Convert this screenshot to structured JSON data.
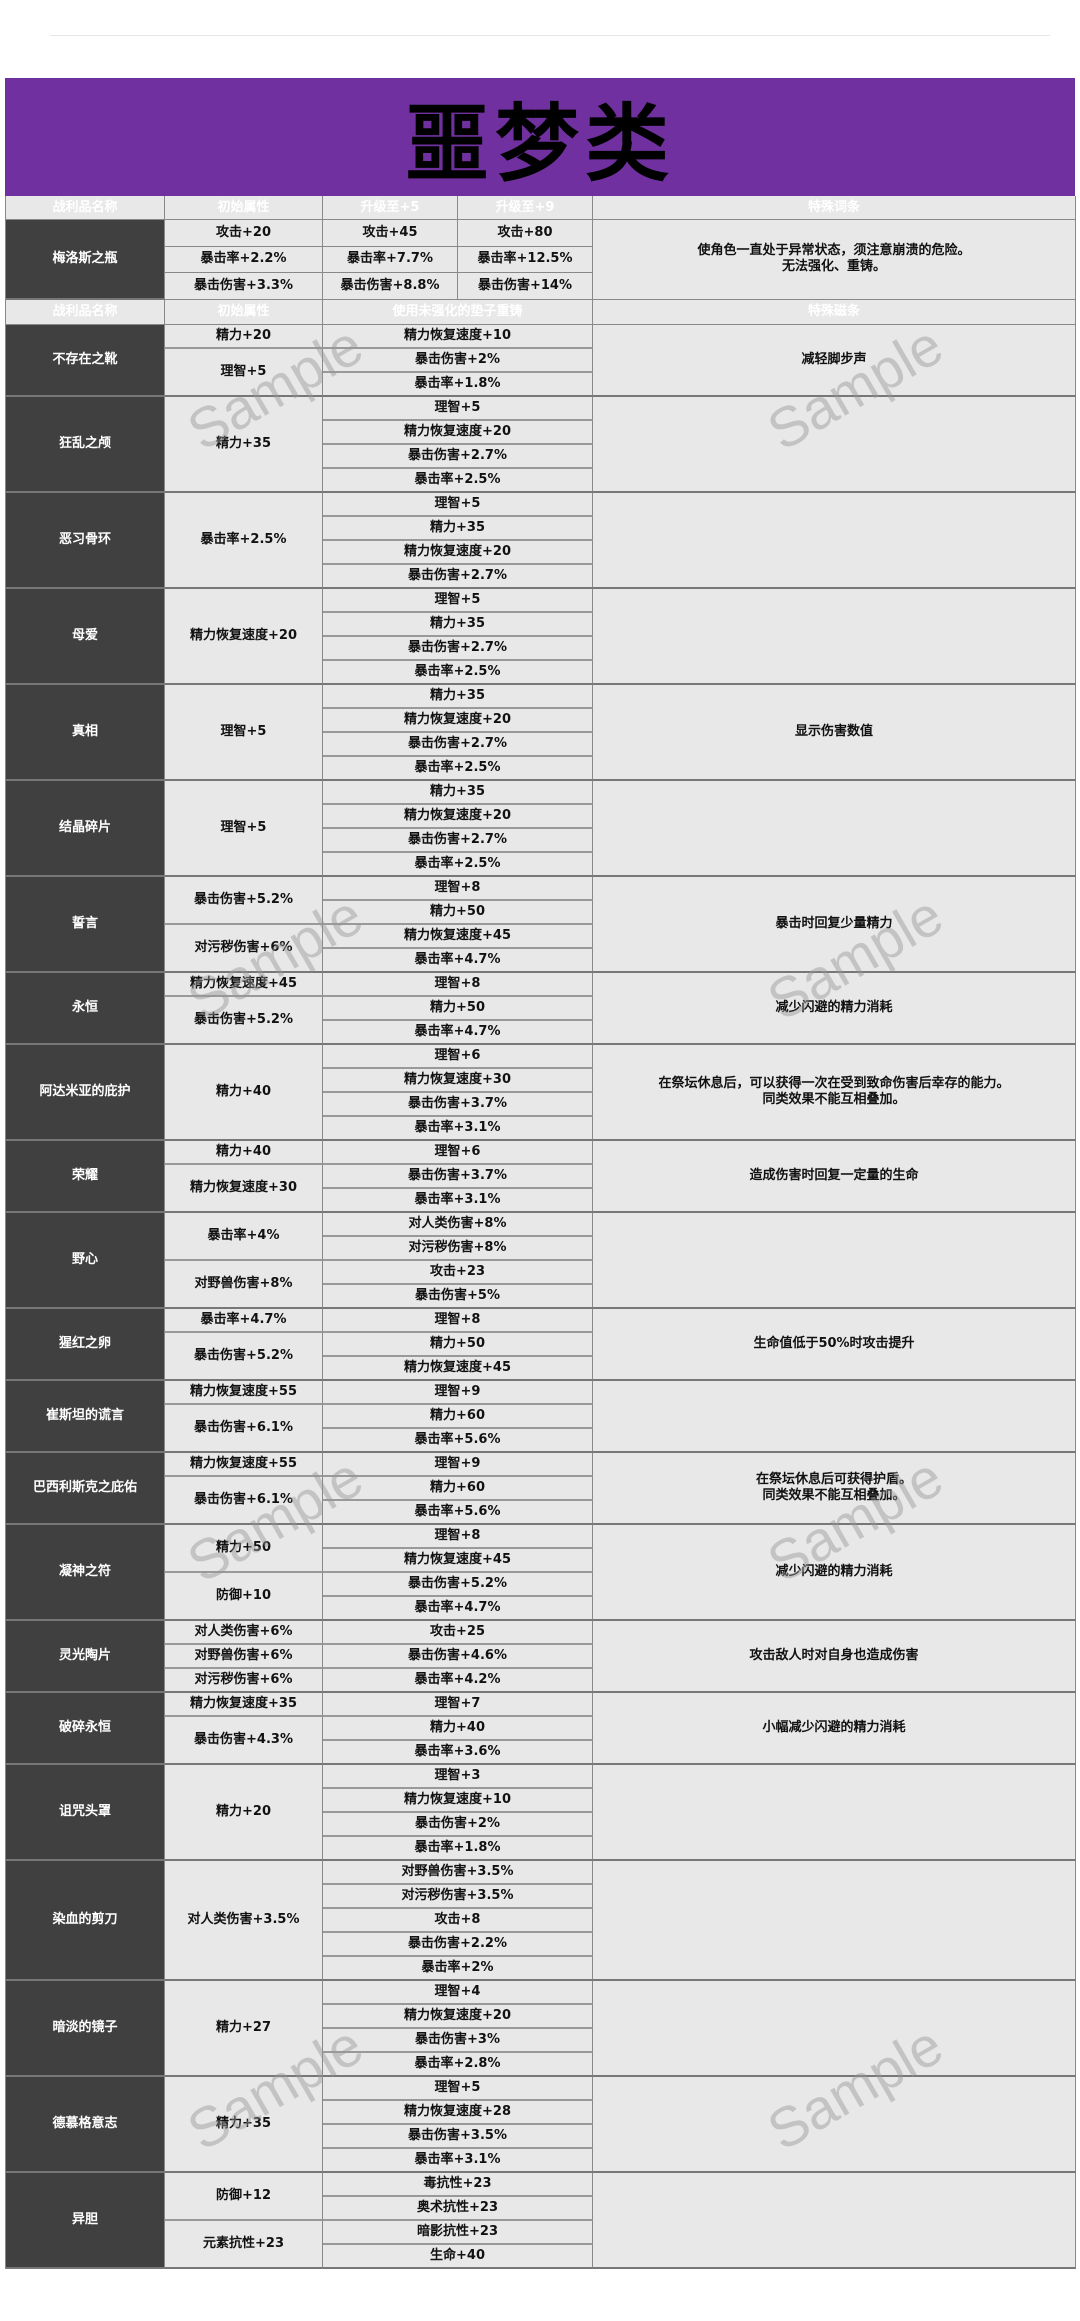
{
  "title": "噩梦类",
  "watermark": "Sample",
  "colors": {
    "banner": "#7030a0",
    "header_purple": "#8064a2",
    "header_dark": "#404040",
    "cell": "#e8e8e8"
  },
  "header1": [
    "战利品名称",
    "初始属性",
    "升级至+5",
    "升级至+9",
    "特殊词条"
  ],
  "mellos": {
    "name": "梅洛斯之瓶",
    "initial": [
      "攻击+20",
      "暴击率+2.2%",
      "暴击伤害+3.3%"
    ],
    "plus5": [
      "攻击+45",
      "暴击率+7.7%",
      "暴击伤害+8.8%"
    ],
    "plus9": [
      "攻击+80",
      "暴击率+12.5%",
      "暴击伤害+14%"
    ],
    "effect": "使角色一直处于异常状态，须注意崩溃的危险。\n无法强化、重铸。"
  },
  "header2": [
    "战利品名称",
    "初始属性",
    "使用未强化的垫子重铸",
    "特殊磁条"
  ],
  "items": [
    {
      "name": "不存在之靴",
      "initial": [
        [
          "精力+20",
          1
        ],
        [
          "理智+5",
          2
        ]
      ],
      "reforge": [
        "精力恢复速度+10",
        "暴击伤害+2%",
        "暴击率+1.8%"
      ],
      "effect": "减轻脚步声"
    },
    {
      "name": "狂乱之颅",
      "initial": [
        [
          "精力+35",
          4
        ]
      ],
      "reforge": [
        "理智+5",
        "精力恢复速度+20",
        "暴击伤害+2.7%",
        "暴击率+2.5%"
      ],
      "effect": ""
    },
    {
      "name": "恶习骨环",
      "initial": [
        [
          "暴击率+2.5%",
          4
        ]
      ],
      "reforge": [
        "理智+5",
        "精力+35",
        "精力恢复速度+20",
        "暴击伤害+2.7%"
      ],
      "effect": ""
    },
    {
      "name": "母爱",
      "initial": [
        [
          "精力恢复速度+20",
          4
        ]
      ],
      "reforge": [
        "理智+5",
        "精力+35",
        "暴击伤害+2.7%",
        "暴击率+2.5%"
      ],
      "effect": ""
    },
    {
      "name": "真相",
      "initial": [
        [
          "理智+5",
          4
        ]
      ],
      "reforge": [
        "精力+35",
        "精力恢复速度+20",
        "暴击伤害+2.7%",
        "暴击率+2.5%"
      ],
      "effect": "显示伤害数值"
    },
    {
      "name": "结晶碎片",
      "initial": [
        [
          "理智+5",
          4
        ]
      ],
      "reforge": [
        "精力+35",
        "精力恢复速度+20",
        "暴击伤害+2.7%",
        "暴击率+2.5%"
      ],
      "effect": ""
    },
    {
      "name": "誓言",
      "initial": [
        [
          "暴击伤害+5.2%",
          2
        ],
        [
          "对污秽伤害+6%",
          2
        ]
      ],
      "reforge": [
        "理智+8",
        "精力+50",
        "精力恢复速度+45",
        "暴击率+4.7%"
      ],
      "effect": "暴击时回复少量精力"
    },
    {
      "name": "永恒",
      "initial": [
        [
          "精力恢复速度+45",
          1
        ],
        [
          "暴击伤害+5.2%",
          2
        ]
      ],
      "reforge": [
        "理智+8",
        "精力+50",
        "暴击率+4.7%"
      ],
      "effect": "减少闪避的精力消耗"
    },
    {
      "name": "阿达米亚的庇护",
      "initial": [
        [
          "精力+40",
          4
        ]
      ],
      "reforge": [
        "理智+6",
        "精力恢复速度+30",
        "暴击伤害+3.7%",
        "暴击率+3.1%"
      ],
      "effect": "在祭坛休息后，可以获得一次在受到致命伤害后幸存的能力。\n同类效果不能互相叠加。"
    },
    {
      "name": "荣耀",
      "initial": [
        [
          "精力+40",
          1
        ],
        [
          "精力恢复速度+30",
          2
        ]
      ],
      "reforge": [
        "理智+6",
        "暴击伤害+3.7%",
        "暴击率+3.1%"
      ],
      "effect": "造成伤害时回复一定量的生命"
    },
    {
      "name": "野心",
      "initial": [
        [
          "暴击率+4%",
          2
        ],
        [
          "对野兽伤害+8%",
          2
        ]
      ],
      "reforge": [
        "对人类伤害+8%",
        "对污秽伤害+8%",
        "攻击+23",
        "暴击伤害+5%"
      ],
      "effect": ""
    },
    {
      "name": "猩红之卵",
      "initial": [
        [
          "暴击率+4.7%",
          1
        ],
        [
          "暴击伤害+5.2%",
          2
        ]
      ],
      "reforge": [
        "理智+8",
        "精力+50",
        "精力恢复速度+45"
      ],
      "effect": "生命值低于50%时攻击提升"
    },
    {
      "name": "崔斯坦的谎言",
      "initial": [
        [
          "精力恢复速度+55",
          1
        ],
        [
          "暴击伤害+6.1%",
          2
        ]
      ],
      "reforge": [
        "理智+9",
        "精力+60",
        "暴击率+5.6%"
      ],
      "effect": ""
    },
    {
      "name": "巴西利斯克之庇佑",
      "initial": [
        [
          "精力恢复速度+55",
          1
        ],
        [
          "暴击伤害+6.1%",
          2
        ]
      ],
      "reforge": [
        "理智+9",
        "精力+60",
        "暴击率+5.6%"
      ],
      "effect": "在祭坛休息后可获得护盾。\n同类效果不能互相叠加。"
    },
    {
      "name": "凝神之符",
      "initial": [
        [
          "精力+50",
          2
        ],
        [
          "防御+10",
          2
        ]
      ],
      "reforge": [
        "理智+8",
        "精力恢复速度+45",
        "暴击伤害+5.2%",
        "暴击率+4.7%"
      ],
      "effect": "减少闪避的精力消耗"
    },
    {
      "name": "灵光陶片",
      "initial": [
        [
          "对人类伤害+6%",
          1
        ],
        [
          "对野兽伤害+6%",
          1
        ],
        [
          "对污秽伤害+6%",
          1
        ]
      ],
      "reforge": [
        "攻击+25",
        "暴击伤害+4.6%",
        "暴击率+4.2%"
      ],
      "effect": "攻击敌人时对自身也造成伤害"
    },
    {
      "name": "破碎永恒",
      "initial": [
        [
          "精力恢复速度+35",
          1
        ],
        [
          "暴击伤害+4.3%",
          2
        ]
      ],
      "reforge": [
        "理智+7",
        "精力+40",
        "暴击率+3.6%"
      ],
      "effect": "小幅减少闪避的精力消耗"
    },
    {
      "name": "诅咒头罩",
      "initial": [
        [
          "精力+20",
          4
        ]
      ],
      "reforge": [
        "理智+3",
        "精力恢复速度+10",
        "暴击伤害+2%",
        "暴击率+1.8%"
      ],
      "effect": ""
    },
    {
      "name": "染血的剪刀",
      "initial": [
        [
          "对人类伤害+3.5%",
          5
        ]
      ],
      "reforge": [
        "对野兽伤害+3.5%",
        "对污秽伤害+3.5%",
        "攻击+8",
        "暴击伤害+2.2%",
        "暴击率+2%"
      ],
      "effect": ""
    },
    {
      "name": "暗淡的镜子",
      "initial": [
        [
          "精力+27",
          4
        ]
      ],
      "reforge": [
        "理智+4",
        "精力恢复速度+20",
        "暴击伤害+3%",
        "暴击率+2.8%"
      ],
      "effect": ""
    },
    {
      "name": "德慕格意志",
      "initial": [
        [
          "精力+35",
          4
        ]
      ],
      "reforge": [
        "理智+5",
        "精力恢复速度+28",
        "暴击伤害+3.5%",
        "暴击率+3.1%"
      ],
      "effect": ""
    },
    {
      "name": "异胆",
      "initial": [
        [
          "防御+12",
          2
        ],
        [
          "元素抗性+23",
          2
        ]
      ],
      "reforge": [
        "毒抗性+23",
        "奥术抗性+23",
        "暗影抗性+23",
        "生命+40"
      ],
      "effect": ""
    }
  ]
}
